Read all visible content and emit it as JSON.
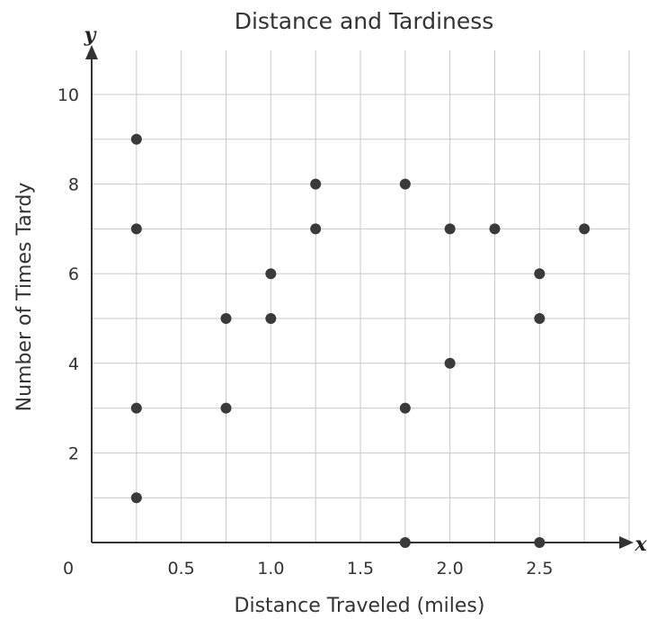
{
  "chart_data": {
    "type": "scatter",
    "title": "Distance and Tardiness",
    "xlabel": "Distance Traveled (miles)",
    "ylabel": "Number of Times Tardy",
    "x_axis_letter": "x",
    "y_axis_letter": "y",
    "xlim": [
      0,
      3.0
    ],
    "ylim": [
      0,
      10
    ],
    "x_ticks": [
      0.5,
      1.0,
      1.5,
      2.0,
      2.5
    ],
    "x_tick_labels": [
      "0.5",
      "1.0",
      "1.5",
      "2.0",
      "2.5"
    ],
    "y_ticks": [
      2,
      4,
      6,
      8,
      10
    ],
    "y_tick_labels": [
      "2",
      "4",
      "6",
      "8",
      "10"
    ],
    "origin_label": "0",
    "grid": true,
    "points": [
      {
        "x": 0.25,
        "y": 9
      },
      {
        "x": 0.25,
        "y": 7
      },
      {
        "x": 0.25,
        "y": 3
      },
      {
        "x": 0.25,
        "y": 1
      },
      {
        "x": 0.75,
        "y": 5
      },
      {
        "x": 0.75,
        "y": 3
      },
      {
        "x": 1.0,
        "y": 6
      },
      {
        "x": 1.0,
        "y": 5
      },
      {
        "x": 1.25,
        "y": 8
      },
      {
        "x": 1.25,
        "y": 7
      },
      {
        "x": 1.75,
        "y": 8
      },
      {
        "x": 1.75,
        "y": 3
      },
      {
        "x": 1.75,
        "y": 0
      },
      {
        "x": 2.0,
        "y": 7
      },
      {
        "x": 2.0,
        "y": 4
      },
      {
        "x": 2.25,
        "y": 7
      },
      {
        "x": 2.5,
        "y": 6
      },
      {
        "x": 2.5,
        "y": 5
      },
      {
        "x": 2.5,
        "y": 0
      },
      {
        "x": 2.75,
        "y": 7
      }
    ]
  }
}
